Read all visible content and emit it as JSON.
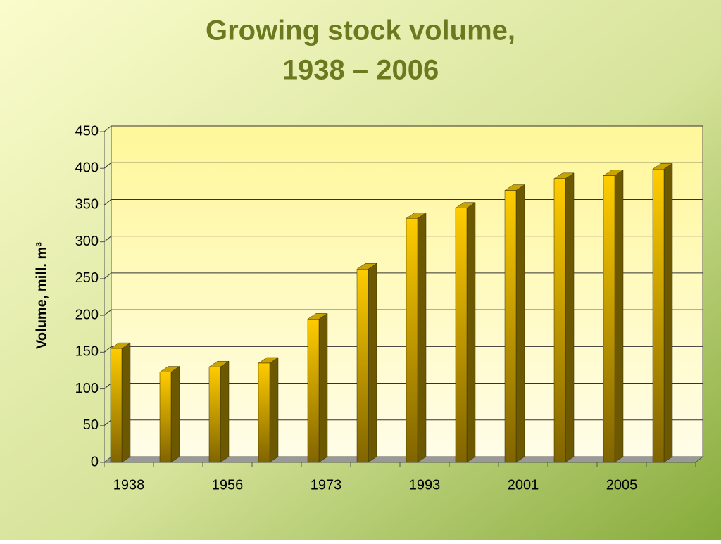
{
  "chart_data": {
    "type": "bar3d",
    "title": [
      "Growing stock volume,",
      "1938 – 2006"
    ],
    "ylabel": "Volume, mill. m³",
    "categories": [
      "1938",
      null,
      "1956",
      null,
      "1973",
      null,
      "1993",
      null,
      "2001",
      null,
      "2005",
      null
    ],
    "values": [
      155,
      123,
      130,
      135,
      195,
      263,
      332,
      346,
      370,
      386,
      390,
      399
    ],
    "color": "#ffcc00",
    "ylim": [
      0,
      450
    ],
    "yticks": [
      0,
      50,
      100,
      150,
      200,
      250,
      300,
      350,
      400,
      450
    ],
    "grid": true
  }
}
